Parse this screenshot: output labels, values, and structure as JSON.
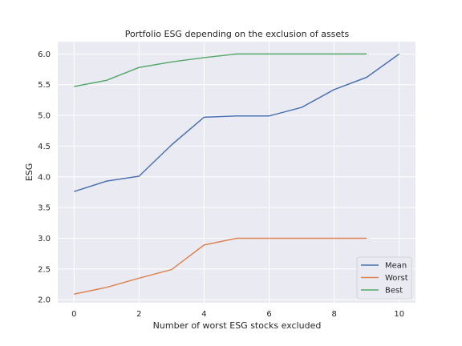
{
  "chart_data": {
    "type": "line",
    "title": "Portfolio ESG depending on the exclusion of assets",
    "xlabel": "Number of worst ESG stocks excluded",
    "ylabel": "ESG",
    "xlim": [
      -0.5,
      10.5
    ],
    "ylim": [
      1.95,
      6.2
    ],
    "xticks": [
      0,
      2,
      4,
      6,
      8,
      10
    ],
    "yticks": [
      2.0,
      2.5,
      3.0,
      3.5,
      4.0,
      4.5,
      5.0,
      5.5,
      6.0
    ],
    "xtick_labels": [
      "0",
      "2",
      "4",
      "6",
      "8",
      "10"
    ],
    "ytick_labels": [
      "2.0",
      "2.5",
      "3.0",
      "3.5",
      "4.0",
      "4.5",
      "5.0",
      "5.5",
      "6.0"
    ],
    "grid": true,
    "legend_position": "bottom-right",
    "series": [
      {
        "name": "Mean",
        "color": "#4c72b0",
        "x": [
          0,
          1,
          2,
          3,
          4,
          5,
          6,
          7,
          8,
          9,
          10
        ],
        "values": [
          3.76,
          3.93,
          4.01,
          4.52,
          4.97,
          4.99,
          4.99,
          5.13,
          5.42,
          5.62,
          6.0
        ]
      },
      {
        "name": "Worst",
        "color": "#dd8452",
        "x": [
          0,
          1,
          2,
          3,
          4,
          5,
          6,
          7,
          8,
          9
        ],
        "values": [
          2.09,
          2.2,
          2.35,
          2.49,
          2.89,
          3.0,
          3.0,
          3.0,
          3.0,
          3.0
        ]
      },
      {
        "name": "Best",
        "color": "#55a868",
        "x": [
          0,
          1,
          2,
          3,
          4,
          5,
          6,
          7,
          8,
          9
        ],
        "values": [
          5.47,
          5.57,
          5.78,
          5.87,
          5.94,
          6.0,
          6.0,
          6.0,
          6.0,
          6.0
        ]
      }
    ]
  },
  "style": {
    "plot_background": "#eaeaf2",
    "grid_color": "#ffffff",
    "text_color": "#262626"
  }
}
